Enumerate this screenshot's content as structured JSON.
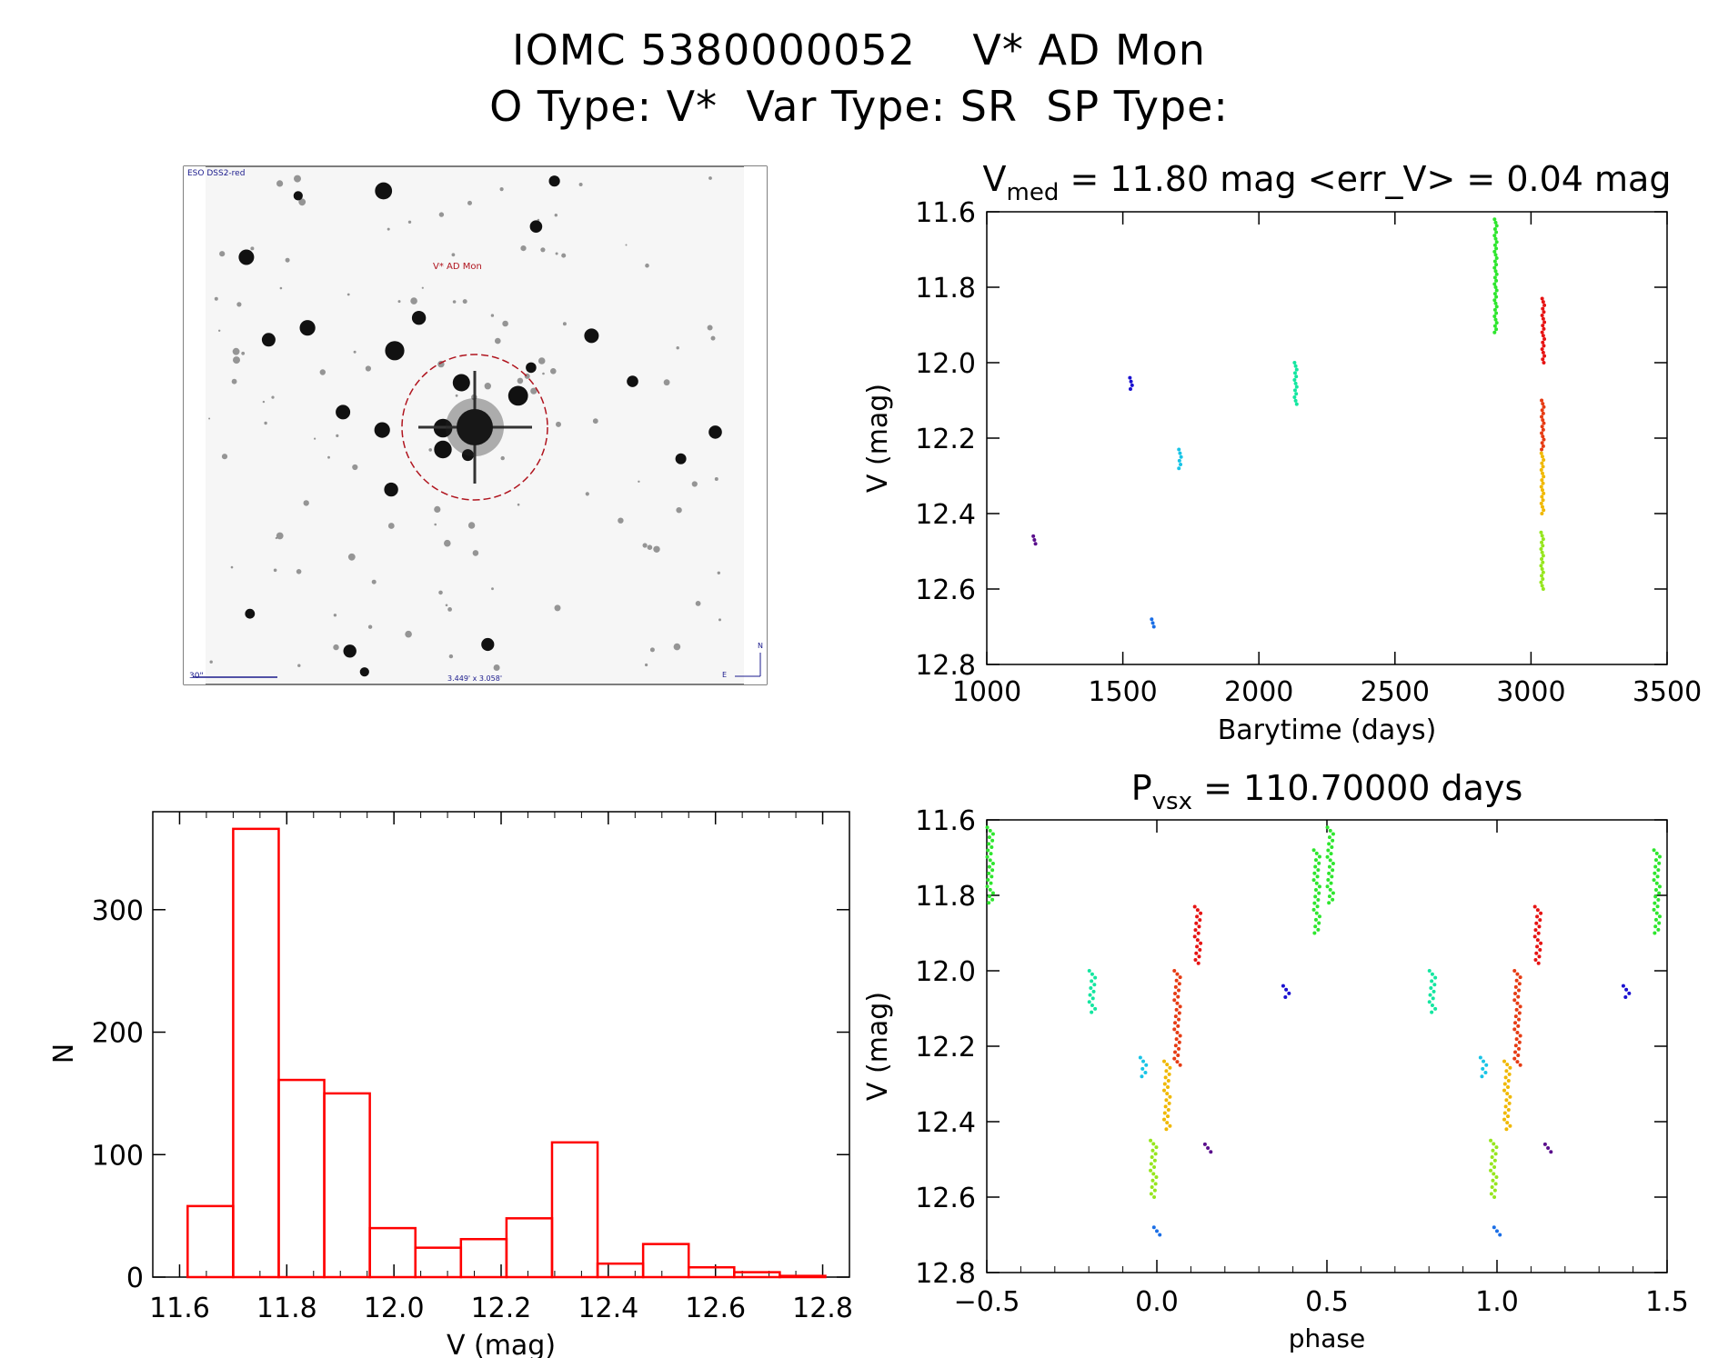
{
  "header": {
    "title_line1": "IOMC 5380000052    V* AD Mon",
    "title_line2": "O Type: V*  Var Type: SR  SP Type:"
  },
  "finder": {
    "survey_label": "ESO DSS2-red",
    "target_label": "V* AD Mon",
    "scale_label": "30\"",
    "fov_label": "3.449' x 3.058'",
    "north_label": "N",
    "east_label": "E"
  },
  "chart_data": [
    {
      "id": "light_curve",
      "type": "scatter",
      "title_main": "V",
      "title_sub": "med",
      "title_rest": " = 11.80 mag <err_V> = 0.04 mag",
      "xlabel": "Barytime (days)",
      "ylabel": "V (mag)",
      "xlim": [
        1000,
        3500
      ],
      "ylim": [
        12.8,
        11.6
      ],
      "y_inverted": true,
      "xticks": [
        "1000",
        "1500",
        "2000",
        "2500",
        "3000",
        "3500"
      ],
      "yticks": [
        "11.6",
        "11.8",
        "12.0",
        "12.2",
        "12.4",
        "12.6",
        "12.8"
      ],
      "series": [
        {
          "color": "#5a0f8c",
          "x": 1175,
          "y": [
            12.46,
            12.48
          ]
        },
        {
          "color": "#1a10d0",
          "x": 1530,
          "y": [
            12.04,
            12.07
          ]
        },
        {
          "color": "#1a6ee6",
          "x": 1610,
          "y": [
            12.68,
            12.7
          ]
        },
        {
          "color": "#18c4e6",
          "x": 1710,
          "y": [
            12.23,
            12.28
          ]
        },
        {
          "color": "#14e6a0",
          "x": 2135,
          "y": [
            12.0,
            12.11
          ]
        },
        {
          "color": "#2ee62e",
          "x": 2870,
          "y": [
            11.62,
            11.92
          ]
        },
        {
          "color": "#e61414",
          "x": 3045,
          "y": [
            11.83,
            12.0
          ]
        },
        {
          "color": "#e63c14",
          "x": 3043,
          "y": [
            12.1,
            12.23
          ]
        },
        {
          "color": "#f0b800",
          "x": 3042,
          "y": [
            12.24,
            12.4
          ]
        },
        {
          "color": "#96e61e",
          "x": 3041,
          "y": [
            12.45,
            12.6
          ]
        }
      ]
    },
    {
      "id": "phase_curve",
      "type": "scatter",
      "title_main": "P",
      "title_sub": "vsx",
      "title_rest": " = 110.70000 days",
      "xlabel": "phase",
      "ylabel": "V (mag)",
      "xlim": [
        -0.5,
        1.5
      ],
      "ylim": [
        12.8,
        11.6
      ],
      "y_inverted": true,
      "xticks": [
        "−0.5",
        "0.0",
        "0.5",
        "1.0",
        "1.5"
      ],
      "yticks": [
        "11.6",
        "11.8",
        "12.0",
        "12.2",
        "12.4",
        "12.6",
        "12.8"
      ],
      "period_days": 110.7,
      "series": [
        {
          "color": "#2ee62e",
          "phase": [
            -0.49,
            0.51
          ],
          "y": [
            11.62,
            11.82
          ]
        },
        {
          "color": "#2ee62e",
          "phase": [
            0.47,
            1.47
          ],
          "y": [
            11.68,
            11.9
          ]
        },
        {
          "color": "#14e6a0",
          "phase": [
            -0.19,
            0.81
          ],
          "y": [
            12.0,
            12.11
          ]
        },
        {
          "color": "#18c4e6",
          "phase": [
            -0.04,
            0.96
          ],
          "y": [
            12.23,
            12.28
          ]
        },
        {
          "color": "#1a6ee6",
          "phase": [
            0.0,
            1.0
          ],
          "y": [
            12.68,
            12.7
          ]
        },
        {
          "color": "#96e61e",
          "phase": [
            -0.01,
            0.99
          ],
          "y": [
            12.45,
            12.6
          ]
        },
        {
          "color": "#f0b800",
          "phase": [
            0.03,
            1.03
          ],
          "y": [
            12.24,
            12.42
          ]
        },
        {
          "color": "#e63c14",
          "phase": [
            0.06,
            1.06
          ],
          "y": [
            12.0,
            12.25
          ]
        },
        {
          "color": "#e61414",
          "phase": [
            0.12,
            1.12
          ],
          "y": [
            11.83,
            11.98
          ]
        },
        {
          "color": "#5a0f8c",
          "phase": [
            0.15,
            1.15
          ],
          "y": [
            12.46,
            12.48
          ]
        },
        {
          "color": "#1a10d0",
          "phase": [
            0.38,
            1.38
          ],
          "y": [
            12.04,
            12.07
          ]
        }
      ]
    },
    {
      "id": "histogram",
      "type": "bar",
      "xlabel": "V (mag)",
      "ylabel": "N",
      "xlim": [
        11.55,
        12.85
      ],
      "ylim": [
        0,
        380
      ],
      "xticks": [
        "11.6",
        "11.8",
        "12.0",
        "12.2",
        "12.4",
        "12.6",
        "12.8"
      ],
      "yticks": [
        "0",
        "100",
        "200",
        "300"
      ],
      "bin_width": 0.085,
      "bin_start": 11.615,
      "values": [
        58,
        366,
        161,
        150,
        40,
        24,
        31,
        48,
        110,
        11,
        27,
        8,
        4,
        1
      ],
      "bar_color": "#ff0000"
    }
  ]
}
